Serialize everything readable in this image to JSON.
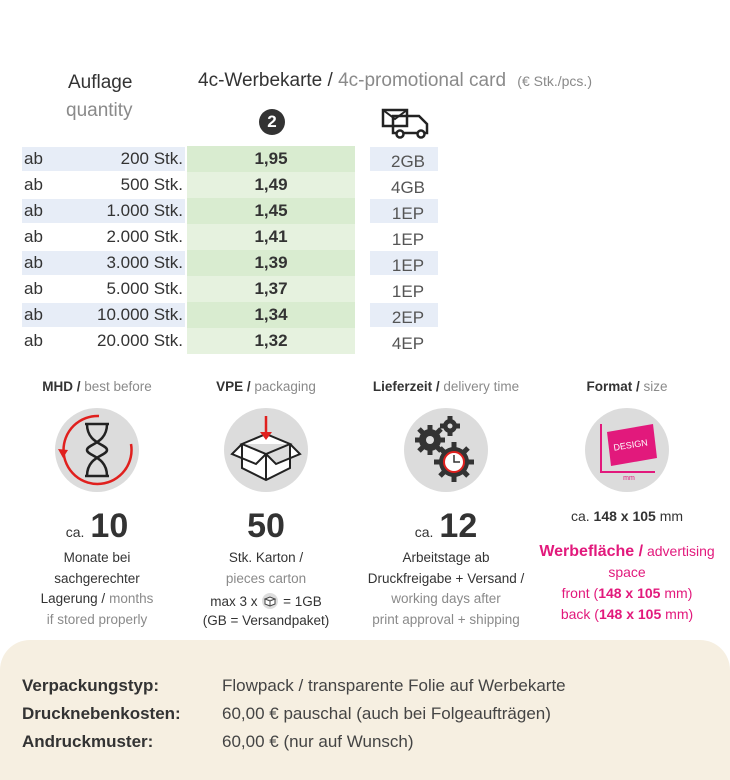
{
  "header": {
    "quantity_de": "Auflage",
    "quantity_en": "quantity",
    "product_de": "4c-Werbekarte /",
    "product_en": "4c-promotional card",
    "unit": "(€ Stk./pcs.)",
    "price_column": "2"
  },
  "table": {
    "rows": [
      [
        "ab",
        "200 Stk.",
        "1,95",
        "2GB"
      ],
      [
        "ab",
        "500 Stk.",
        "1,49",
        "4GB"
      ],
      [
        "ab",
        "1.000 Stk.",
        "1,45",
        "1EP"
      ],
      [
        "ab",
        "2.000 Stk.",
        "1,41",
        "1EP"
      ],
      [
        "ab",
        "3.000 Stk.",
        "1,39",
        "1EP"
      ],
      [
        "ab",
        "5.000 Stk.",
        "1,37",
        "1EP"
      ],
      [
        "ab",
        "10.000 Stk.",
        "1,34",
        "2EP"
      ],
      [
        "ab",
        "20.000 Stk.",
        "1,32",
        "4EP"
      ]
    ]
  },
  "info": [
    {
      "heading_de": "MHD /",
      "heading_en": "best before",
      "prefix": "ca.",
      "number": "10",
      "lines": [
        {
          "de": "Monate bei"
        },
        {
          "de": "sachgerechter"
        },
        {
          "de": "Lagerung /",
          "en": "months"
        },
        {
          "en": "if stored properly"
        }
      ]
    },
    {
      "heading_de": "VPE /",
      "heading_en": "packaging",
      "number": "50",
      "lines": [
        {
          "de": "Stk. Karton /"
        },
        {
          "en": "pieces carton"
        }
      ],
      "note": {
        "before": "max 3 x",
        "after": "= 1GB",
        "line2": "(GB = Versandpaket)"
      }
    },
    {
      "heading_de": "Lieferzeit /",
      "heading_en": "delivery time",
      "prefix": "ca.",
      "number": "12",
      "lines": [
        {
          "de": "Arbeitstage ab"
        },
        {
          "de": "Druckfreigabe + Versand /"
        },
        {
          "en": "working days after"
        },
        {
          "en": "print approval + shipping"
        }
      ]
    },
    {
      "heading_de": "Format /",
      "heading_en": "size",
      "icon_text": "DESIGN",
      "icon_unit": "mm",
      "size": {
        "prefix": "ca.",
        "value": "148 x 105",
        "unit": "mm"
      },
      "advertising": {
        "title": "Werbefläche /",
        "title_en": "advertising space",
        "front": [
          "front (",
          "148 x 105",
          "mm)"
        ],
        "back": [
          "back (",
          "148 x 105",
          "mm)"
        ]
      }
    }
  ],
  "footer": {
    "rows": [
      [
        "Verpackungstyp:",
        "Flowpack / transparente Folie auf Werbekarte"
      ],
      [
        "Drucknebenkosten:",
        "60,00 € pauschal (auch bei Folgeaufträgen)"
      ],
      [
        "Andruckmuster:",
        "60,00 € (nur auf Wunsch)"
      ]
    ]
  }
}
